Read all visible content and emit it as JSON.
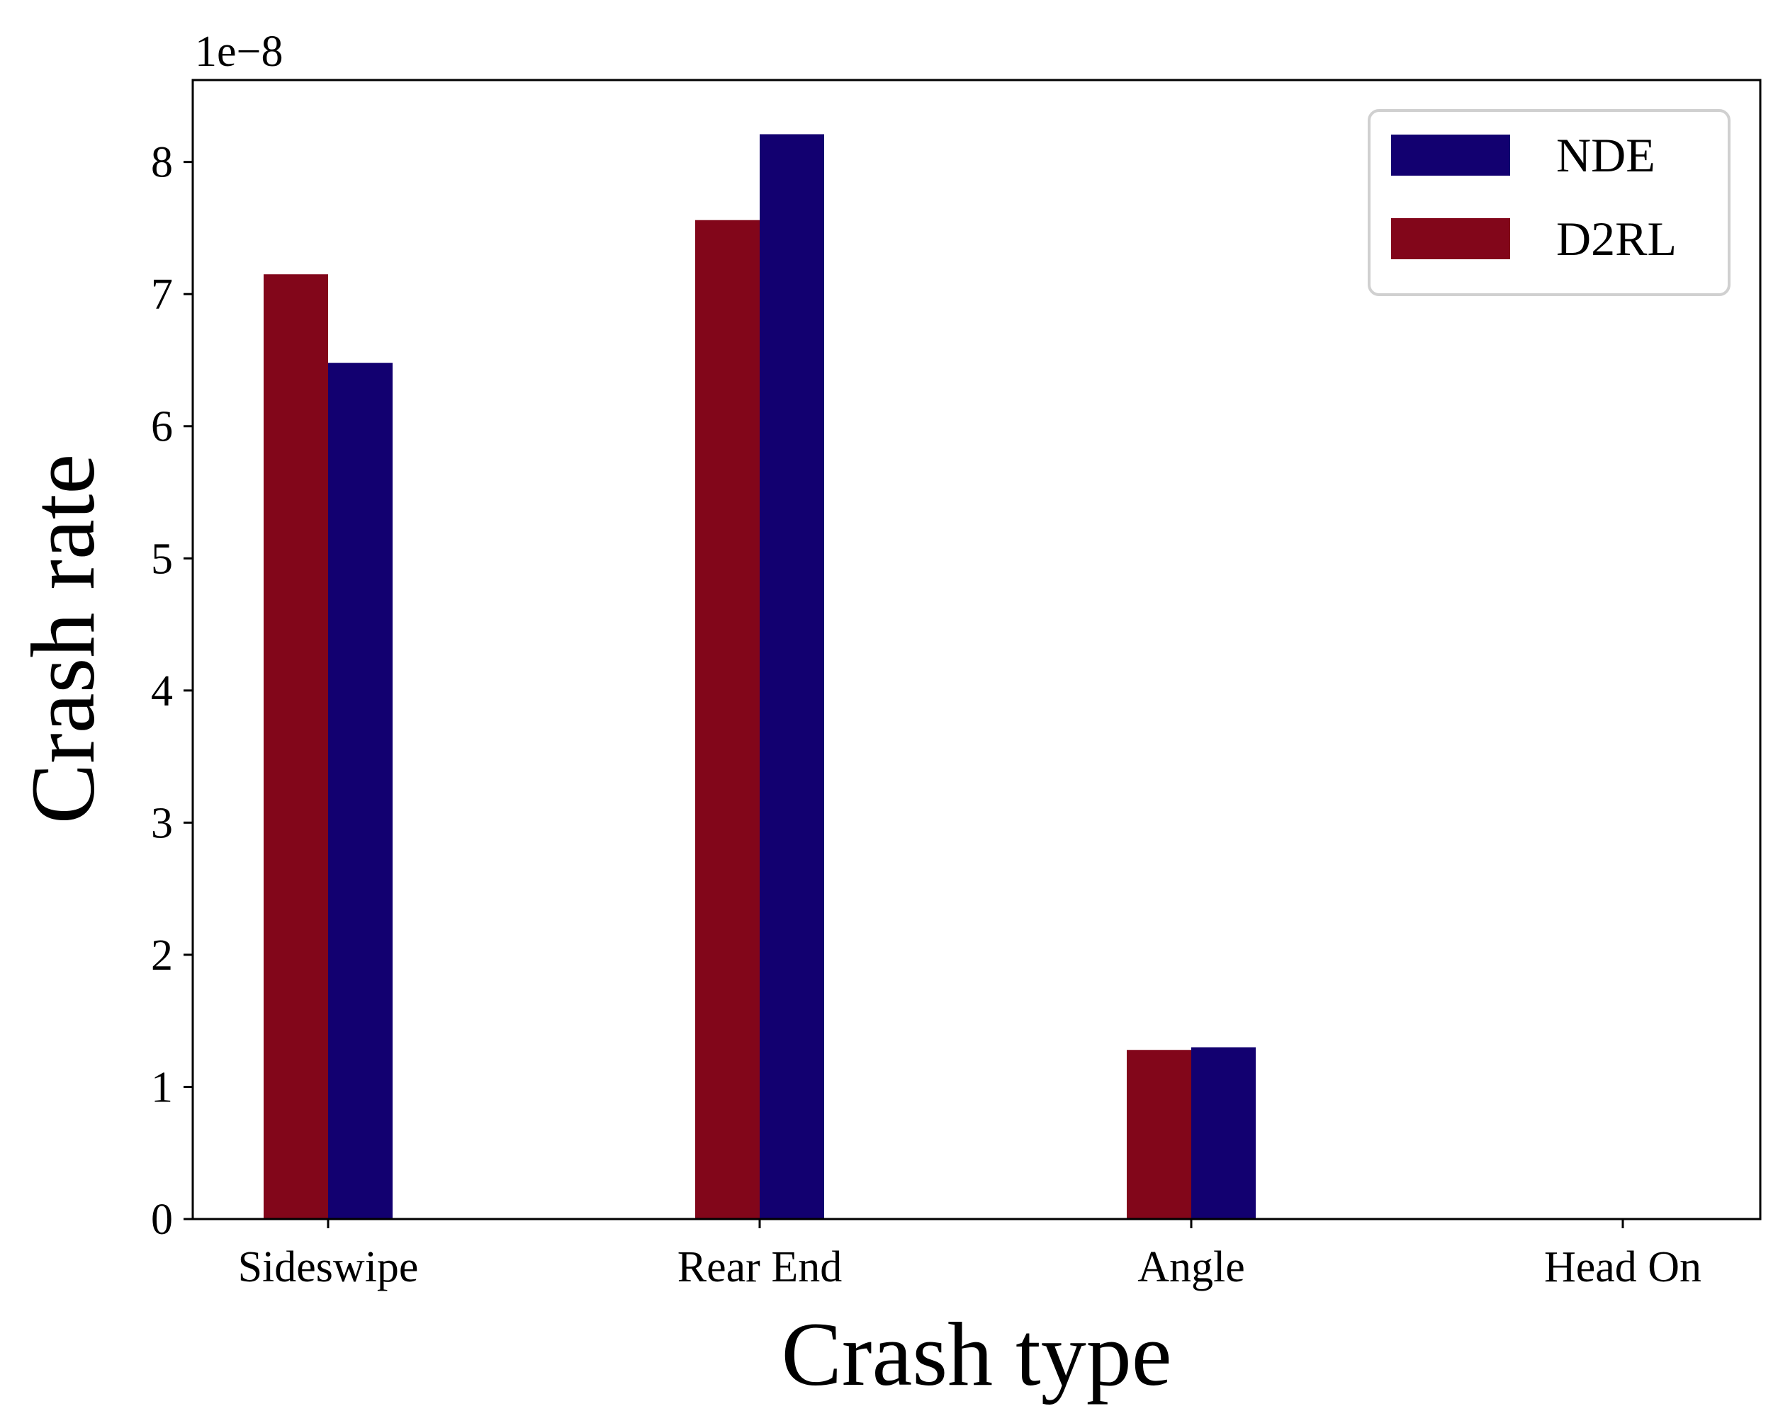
{
  "chart_data": {
    "type": "bar",
    "title": "",
    "xlabel": "Crash type",
    "ylabel": "Crash rate",
    "y_scale_offset": "1e−8",
    "ylim": [
      0,
      8.62
    ],
    "yticks": [
      "0",
      "1",
      "2",
      "3",
      "4",
      "5",
      "6",
      "7",
      "8"
    ],
    "categories": [
      "Sideswipe",
      "Rear End",
      "Angle",
      "Head On"
    ],
    "series": [
      {
        "name": "D2RL",
        "color": "#82061a",
        "values": [
          7.15,
          7.56,
          1.28,
          0
        ]
      },
      {
        "name": "NDE",
        "color": "#120070",
        "values": [
          6.48,
          8.21,
          1.3,
          0
        ]
      }
    ],
    "legend": {
      "placement": "top-right",
      "order": [
        "NDE",
        "D2RL"
      ]
    },
    "grid": false
  }
}
